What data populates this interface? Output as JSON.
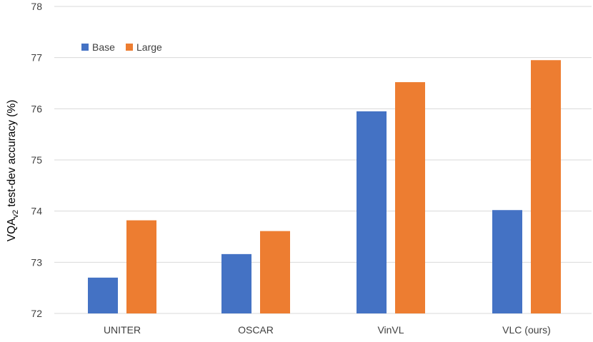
{
  "chart_data": {
    "type": "bar",
    "categories": [
      "UNITER",
      "OSCAR",
      "VinVL",
      "VLC (ours)"
    ],
    "series": [
      {
        "name": "Base",
        "color": "#4472c4",
        "values": [
          72.7,
          73.16,
          75.95,
          74.02
        ]
      },
      {
        "name": "Large",
        "color": "#ed7d31",
        "values": [
          73.82,
          73.61,
          76.52,
          76.95
        ]
      }
    ],
    "ylabel": {
      "prefix": "VQA",
      "subscript": "v2",
      "suffix": " test-dev accuracy (%)"
    },
    "ylim": [
      72,
      78
    ],
    "yticks": [
      "72",
      "73",
      "74",
      "75",
      "76",
      "77",
      "78"
    ],
    "grid": true,
    "legend_position": "top-left"
  }
}
